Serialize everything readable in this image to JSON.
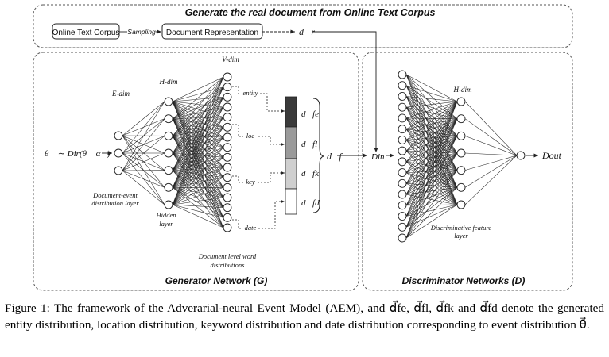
{
  "top_panel": {
    "title": "Generate the real document from Online Text Corpus",
    "box_corpus": "Online Text Corpus",
    "sampling_label": "Sampling",
    "box_doc_rep": "Document Representation",
    "dr_label": "d⃗r"
  },
  "generator": {
    "title": "Generator Network (G)",
    "input_label": "θ⃗ ∼ Dir(θ⃗|α⃗)",
    "edim": "E-dim",
    "hdim": "H-dim",
    "vdim": "V-dim",
    "doc_event_layer": [
      "Document-event",
      "distribution layer"
    ],
    "hidden_layer": [
      "Hidden",
      "layer"
    ],
    "doc_word_dist": [
      "Document level word",
      "distributions"
    ],
    "group_labels": [
      "entity",
      "loc",
      "key",
      "date"
    ],
    "bar_labels": [
      "d⃗fe",
      "d⃗fl",
      "d⃗fk",
      "d⃗fd"
    ],
    "df_label": "d⃗f"
  },
  "discriminator": {
    "title": "Discriminator Networks (D)",
    "din_label": "Din",
    "hdim": "H-dim",
    "feature_layer": [
      "Discriminative feature",
      "layer"
    ],
    "dout_label": "Dout"
  },
  "caption": {
    "text": "Figure 1: The framework of the Adverarial-neural Event Model (AEM), and d⃗fe, d⃗fl, d⃗fk and d⃗fd denote the generated entity distribution, location distribution, keyword distribution and date distribution corresponding to event distribution θ⃗."
  },
  "colors": {
    "line": "#222222",
    "dashed_border": "#555555",
    "bar_segments": [
      "#3a3a3a",
      "#9a9a9a",
      "#cfcfcf",
      "#ffffff"
    ]
  }
}
